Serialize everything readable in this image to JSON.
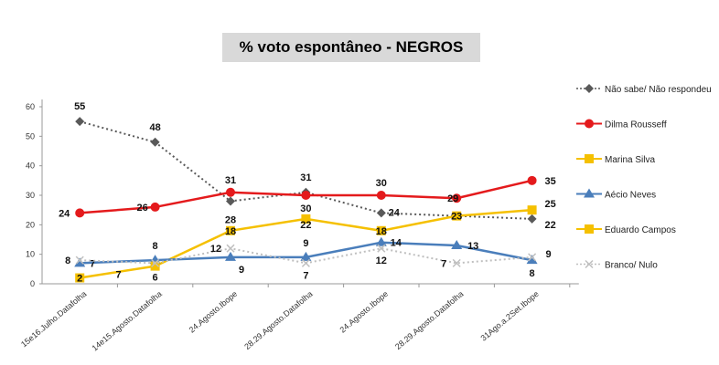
{
  "chart_data": {
    "type": "line",
    "title": "% voto espontâneo - NEGROS",
    "xlabel": "",
    "ylabel": "",
    "ylim": [
      0,
      60
    ],
    "yticks": [
      0,
      10,
      20,
      30,
      40,
      50,
      60
    ],
    "grid": false,
    "legend_position": "right",
    "categories": [
      "15e16.Julho.Datafolha",
      "14e15.Agosto.Datafolha",
      "24.Agosto.Ibope",
      "28.29.Agosto.Datafolha",
      "24.Agosto.Ibope",
      "28.29.Agosto.Datafolha",
      "31Ago.a.2Set.Ibope"
    ],
    "series": [
      {
        "name": "Não sabe/ Não respondeu",
        "color": "#595959",
        "style": "dotted",
        "marker": "diamond",
        "values": [
          55,
          48,
          28,
          31,
          24,
          23,
          22
        ],
        "labels": [
          "55",
          "48",
          "28",
          "31",
          "24",
          "",
          "22"
        ]
      },
      {
        "name": "Dilma Rousseff",
        "color": "#e41a1c",
        "style": "solid",
        "marker": "circle",
        "values": [
          24,
          26,
          31,
          30,
          30,
          29,
          35
        ],
        "labels": [
          "24",
          "26",
          "31",
          "30",
          "30",
          "29",
          "35"
        ]
      },
      {
        "name": "Marina Silva",
        "color": "#f5c000",
        "style": "solid",
        "marker": "square",
        "values": [
          null,
          null,
          18,
          22,
          18,
          23,
          25
        ],
        "labels": [
          "",
          "",
          "18",
          "22",
          "18",
          "23",
          "25"
        ]
      },
      {
        "name": "Aécio Neves",
        "color": "#4a7ebb",
        "style": "solid",
        "marker": "triangle",
        "values": [
          7,
          8,
          9,
          9,
          14,
          13,
          8
        ],
        "labels": [
          "7",
          "8",
          "9",
          "9",
          "14",
          "13",
          "8"
        ]
      },
      {
        "name": "Eduardo Campos",
        "color": "#f5c000",
        "style": "solid",
        "marker": "square",
        "values": [
          2,
          6,
          null,
          null,
          null,
          null,
          null
        ],
        "labels": [
          "2",
          "6",
          "",
          "",
          "",
          "",
          ""
        ]
      },
      {
        "name": "Branco/ Nulo",
        "color": "#bfbfbf",
        "style": "dotted",
        "marker": "x",
        "values": [
          8,
          7,
          12,
          7,
          12,
          7,
          9
        ],
        "labels": [
          "8",
          "7",
          "12",
          "7",
          "12",
          "7",
          "9"
        ]
      }
    ]
  }
}
